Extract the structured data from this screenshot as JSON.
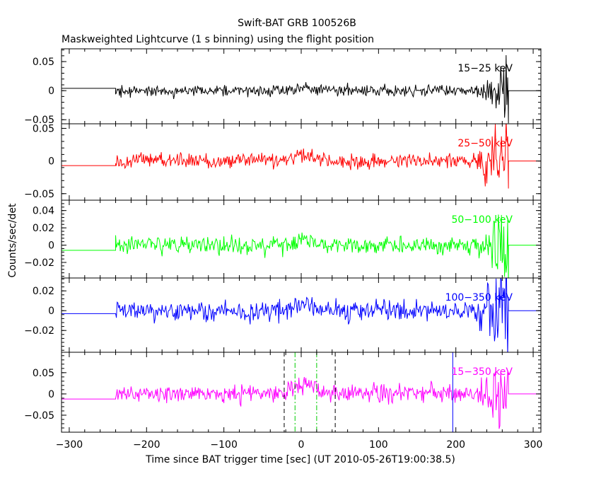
{
  "chart_data": {
    "type": "line",
    "title": "Swift-BAT GRB 100526B",
    "subtitle": "Maskweighted Lightcurve (1 s binning) using the flight position",
    "xlabel": "Time since BAT trigger time [sec] (UT 2010-05-26T19:00:38.5)",
    "ylabel": "Counts/sec/det",
    "xlim": [
      -310,
      310
    ],
    "x_ticks": [
      -300,
      -200,
      -100,
      0,
      100,
      200,
      300
    ],
    "grid": false,
    "data_start": -240,
    "data_end": 268,
    "vlines": [
      {
        "x": -22,
        "color": "#000000",
        "style": "dashed"
      },
      {
        "x": -8,
        "color": "#00cc00",
        "style": "dashdot"
      },
      {
        "x": 20,
        "color": "#00cc00",
        "style": "dashdot"
      },
      {
        "x": 44,
        "color": "#000000",
        "style": "dashed"
      },
      {
        "x": 196,
        "color": "#0000ff",
        "style": "solid"
      }
    ],
    "panels": [
      {
        "band": "15-25 keV",
        "label": "15−25 keV",
        "color": "#000000",
        "ylim": [
          -0.057,
          0.072
        ],
        "y_ticks": [
          0.05,
          0,
          -0.05
        ],
        "y_tick_labels": [
          "0.05",
          "0",
          "−0.05"
        ],
        "noise": 0.0048,
        "pre_level": 0.004,
        "burst_amp": 0.004
      },
      {
        "band": "25-50 keV",
        "label": "25−50 keV",
        "color": "#ff0000",
        "ylim": [
          -0.06,
          0.057
        ],
        "y_ticks": [
          0.05,
          0,
          -0.05
        ],
        "y_tick_labels": [
          "0.05",
          "0",
          "−0.05"
        ],
        "noise": 0.0062,
        "pre_level": -0.007,
        "burst_amp": 0.007
      },
      {
        "band": "50-100 keV",
        "label": "50−100 keV",
        "color": "#00ff00",
        "ylim": [
          -0.038,
          0.052
        ],
        "y_ticks": [
          0.04,
          0.02,
          0,
          -0.02
        ],
        "y_tick_labels": [
          "0.04",
          "0.02",
          "0",
          "−0.02"
        ],
        "noise": 0.0052,
        "pre_level": -0.006,
        "burst_amp": 0.006
      },
      {
        "band": "100-350 keV",
        "label": "100−350 keV",
        "color": "#0000ff",
        "ylim": [
          -0.042,
          0.033
        ],
        "y_ticks": [
          0.02,
          0,
          -0.02
        ],
        "y_tick_labels": [
          "0.02",
          "0",
          "−0.02"
        ],
        "noise": 0.0055,
        "pre_level": -0.003,
        "burst_amp": 0.006
      },
      {
        "band": "15-350 keV",
        "label": "15−350 keV",
        "color": "#ff00ff",
        "ylim": [
          -0.09,
          0.098
        ],
        "y_ticks": [
          0.05,
          0,
          -0.05
        ],
        "y_tick_labels": [
          "0.05",
          "0",
          "−0.05"
        ],
        "noise": 0.011,
        "pre_level": -0.012,
        "burst_amp": 0.022
      }
    ]
  }
}
